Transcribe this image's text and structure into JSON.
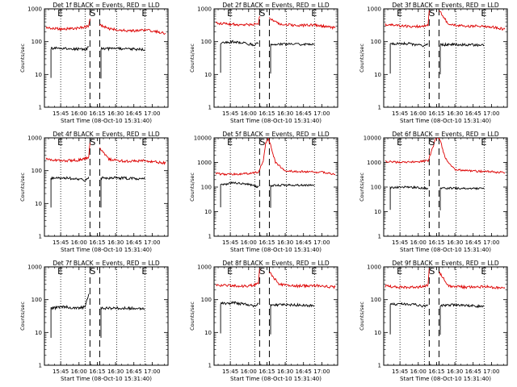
{
  "figure": {
    "time_ticks": [
      "15:45",
      "16:00",
      "16:15",
      "16:30",
      "16:45",
      "17:00"
    ],
    "y_ticks": [
      "1",
      "10",
      "100",
      "1000"
    ],
    "ylabel": "Counts/sec",
    "xlabel": "Start Time (08-Oct-10 15:31:40)",
    "markers": {
      "E": "E",
      "S": "S"
    },
    "colors": {
      "events": "#000000",
      "lld": "#dd0000",
      "axes": "#000000"
    }
  },
  "chart_data": [
    {
      "type": "line",
      "title": "Det 1f BLACK = Events, RED = LLD",
      "xlabel": "Start Time (08-Oct-10 15:31:40)",
      "ylabel": "Counts/sec",
      "ylim": [
        1,
        1000
      ],
      "yscale": "log",
      "x_range": [
        "15:31:40",
        "17:13"
      ],
      "event_lines": {
        "E_dotted": [
          "15:45",
          "16:05",
          "16:31",
          "16:54"
        ],
        "S_dashed": [
          "16:09",
          "16:17"
        ]
      },
      "series": [
        {
          "name": "Events",
          "color": "black",
          "segments": [
            {
              "x": [
                "15:37",
                "15:48",
                "16:00",
                "16:05",
                "16:08"
              ],
              "y": [
                63,
                62,
                60,
                55,
                70
              ]
            },
            {
              "x": [
                "16:18",
                "16:30",
                "16:45",
                "16:54"
              ],
              "y": [
                60,
                61,
                59,
                58
              ]
            }
          ]
        },
        {
          "name": "LLD",
          "color": "red",
          "segments": [
            {
              "x": [
                "15:33",
                "15:45",
                "16:00",
                "16:08",
                "16:09"
              ],
              "y": [
                270,
                240,
                260,
                300,
                500
              ]
            },
            {
              "x": [
                "16:17",
                "16:25",
                "16:40",
                "16:55",
                "17:11"
              ],
              "y": [
                330,
                250,
                210,
                230,
                180
              ]
            }
          ]
        }
      ]
    },
    {
      "type": "line",
      "title": "Det 2f BLACK = Events, RED = LLD",
      "xlabel": "Start Time (08-Oct-10 15:31:40)",
      "ylabel": "Counts/sec",
      "ylim": [
        1,
        1000
      ],
      "yscale": "log",
      "x_range": [
        "15:31:40",
        "17:13"
      ],
      "event_lines": {
        "E_dotted": [
          "15:45",
          "16:05",
          "16:31",
          "16:54"
        ],
        "S_dashed": [
          "16:09",
          "16:17"
        ]
      },
      "series": [
        {
          "name": "Events",
          "color": "black",
          "segments": [
            {
              "x": [
                "15:37",
                "15:48",
                "16:00",
                "16:05",
                "16:08"
              ],
              "y": [
                90,
                100,
                85,
                80,
                90
              ]
            },
            {
              "x": [
                "16:18",
                "16:30",
                "16:45",
                "16:54"
              ],
              "y": [
                85,
                85,
                82,
                80
              ]
            }
          ]
        },
        {
          "name": "LLD",
          "color": "red",
          "segments": [
            {
              "x": [
                "15:33",
                "15:45",
                "16:00",
                "16:08",
                "16:09"
              ],
              "y": [
                370,
                340,
                330,
                360,
                600
              ]
            },
            {
              "x": [
                "16:17",
                "16:25",
                "16:40",
                "16:55",
                "17:11"
              ],
              "y": [
                500,
                350,
                310,
                320,
                260
              ]
            }
          ]
        }
      ]
    },
    {
      "type": "line",
      "title": "Det 3f BLACK = Events, RED = LLD",
      "xlabel": "Start Time (08-Oct-10 15:31:40)",
      "ylabel": "Counts/sec",
      "ylim": [
        1,
        1000
      ],
      "yscale": "log",
      "x_range": [
        "15:31:40",
        "17:13"
      ],
      "event_lines": {
        "E_dotted": [
          "15:45",
          "16:05",
          "16:31",
          "16:54"
        ],
        "S_dashed": [
          "16:09",
          "16:17"
        ]
      },
      "series": [
        {
          "name": "Events",
          "color": "black",
          "segments": [
            {
              "x": [
                "15:37",
                "15:48",
                "16:00",
                "16:05",
                "16:08"
              ],
              "y": [
                85,
                90,
                80,
                75,
                85
              ]
            },
            {
              "x": [
                "16:18",
                "16:30",
                "16:45",
                "16:54"
              ],
              "y": [
                80,
                82,
                80,
                78
              ]
            }
          ]
        },
        {
          "name": "LLD",
          "color": "red",
          "segments": [
            {
              "x": [
                "15:33",
                "15:45",
                "16:00",
                "16:08",
                "16:09"
              ],
              "y": [
                330,
                300,
                290,
                320,
                900
              ]
            },
            {
              "x": [
                "16:17",
                "16:25",
                "16:40",
                "16:55",
                "17:11"
              ],
              "y": [
                900,
                330,
                290,
                300,
                240
              ]
            }
          ]
        }
      ]
    },
    {
      "type": "line",
      "title": "Det 4f BLACK = Events, RED = LLD",
      "xlabel": "Start Time (08-Oct-10 15:31:40)",
      "ylabel": "Counts/sec",
      "ylim": [
        1,
        1000
      ],
      "yscale": "log",
      "x_range": [
        "15:31:40",
        "17:13"
      ],
      "event_lines": {
        "E_dotted": [
          "15:45",
          "16:05",
          "16:31",
          "16:54"
        ],
        "S_dashed": [
          "16:09",
          "16:17"
        ]
      },
      "series": [
        {
          "name": "Events",
          "color": "black",
          "segments": [
            {
              "x": [
                "15:37",
                "15:48",
                "16:00",
                "16:05",
                "16:08"
              ],
              "y": [
                60,
                60,
                55,
                52,
                65
              ]
            },
            {
              "x": [
                "16:18",
                "16:30",
                "16:45",
                "16:54"
              ],
              "y": [
                60,
                60,
                58,
                56
              ]
            }
          ]
        },
        {
          "name": "LLD",
          "color": "red",
          "segments": [
            {
              "x": [
                "15:33",
                "15:45",
                "16:00",
                "16:08",
                "16:09"
              ],
              "y": [
                220,
                200,
                210,
                250,
                700
              ]
            },
            {
              "x": [
                "16:17",
                "16:25",
                "16:40",
                "16:55",
                "17:11"
              ],
              "y": [
                500,
                220,
                190,
                200,
                170
              ]
            }
          ]
        }
      ]
    },
    {
      "type": "line",
      "title": "Det 5f BLACK = Events, RED = LLD",
      "xlabel": "Start Time (08-Oct-10 15:31:40)",
      "ylabel": "Counts/sec",
      "ylim": [
        1,
        10000
      ],
      "yscale": "log",
      "x_range": [
        "15:31:40",
        "17:13"
      ],
      "event_lines": {
        "E_dotted": [
          "15:45",
          "16:05",
          "16:31",
          "16:54"
        ],
        "S_dashed": [
          "16:09",
          "16:17"
        ]
      },
      "series": [
        {
          "name": "Events",
          "color": "black",
          "segments": [
            {
              "x": [
                "15:37",
                "15:48",
                "16:00",
                "16:05",
                "16:08"
              ],
              "y": [
                120,
                150,
                130,
                110,
                100
              ]
            },
            {
              "x": [
                "16:18",
                "16:30",
                "16:45",
                "16:54"
              ],
              "y": [
                115,
                120,
                118,
                115
              ]
            }
          ]
        },
        {
          "name": "LLD",
          "color": "red",
          "segments": [
            {
              "x": [
                "15:33",
                "15:45",
                "16:00",
                "16:08",
                "16:12",
                "16:14",
                "16:16",
                "16:18",
                "16:22",
                "16:30",
                "16:45",
                "17:00",
                "17:11"
              ],
              "y": [
                350,
                330,
                360,
                400,
                1200,
                6000,
                9000,
                5000,
                1000,
                450,
                420,
                400,
                330
              ]
            }
          ]
        }
      ]
    },
    {
      "type": "line",
      "title": "Det 6f BLACK = Events, RED = LLD",
      "xlabel": "Start Time (08-Oct-10 15:31:40)",
      "ylabel": "Counts/sec",
      "ylim": [
        1,
        10000
      ],
      "yscale": "log",
      "x_range": [
        "15:31:40",
        "17:13"
      ],
      "event_lines": {
        "E_dotted": [
          "15:45",
          "16:05",
          "16:31",
          "16:54"
        ],
        "S_dashed": [
          "16:09",
          "16:17"
        ]
      },
      "series": [
        {
          "name": "Events",
          "color": "black",
          "segments": [
            {
              "x": [
                "15:37",
                "15:48",
                "16:00",
                "16:05",
                "16:08"
              ],
              "y": [
                95,
                100,
                95,
                90,
                90
              ]
            },
            {
              "x": [
                "16:18",
                "16:30",
                "16:45",
                "16:54"
              ],
              "y": [
                90,
                90,
                88,
                85
              ]
            }
          ]
        },
        {
          "name": "LLD",
          "color": "red",
          "segments": [
            {
              "x": [
                "15:33",
                "15:45",
                "16:00",
                "16:08",
                "16:12",
                "16:14",
                "16:16",
                "16:18",
                "16:22",
                "16:30",
                "16:45",
                "17:00",
                "17:11"
              ],
              "y": [
                1100,
                1000,
                1050,
                1200,
                4000,
                9000,
                11000,
                8000,
                1500,
                500,
                450,
                420,
                380
              ]
            }
          ]
        }
      ]
    },
    {
      "type": "line",
      "title": "Det 7f BLACK = Events, RED = LLD",
      "xlabel": "Start Time (08-Oct-10 15:31:40)",
      "ylabel": "Counts/sec",
      "ylim": [
        1,
        1000
      ],
      "yscale": "log",
      "x_range": [
        "15:31:40",
        "17:13"
      ],
      "event_lines": {
        "E_dotted": [
          "15:45",
          "16:05",
          "16:31",
          "16:54"
        ],
        "S_dashed": [
          "16:09",
          "16:17"
        ]
      },
      "series": [
        {
          "name": "Events",
          "color": "black",
          "segments": [
            {
              "x": [
                "15:37",
                "15:48",
                "16:00",
                "16:05",
                "16:08"
              ],
              "y": [
                55,
                60,
                55,
                60,
                150
              ]
            },
            {
              "x": [
                "16:18",
                "16:30",
                "16:45",
                "16:54"
              ],
              "y": [
                55,
                55,
                55,
                52
              ]
            }
          ]
        }
      ]
    },
    {
      "type": "line",
      "title": "Det 8f BLACK = Events, RED = LLD",
      "xlabel": "Start Time (08-Oct-10 15:31:40)",
      "ylabel": "Counts/sec",
      "ylim": [
        1,
        1000
      ],
      "yscale": "log",
      "x_range": [
        "15:31:40",
        "17:13"
      ],
      "event_lines": {
        "E_dotted": [
          "15:45",
          "16:05",
          "16:31",
          "16:54"
        ],
        "S_dashed": [
          "16:09",
          "16:17"
        ]
      },
      "series": [
        {
          "name": "Events",
          "color": "black",
          "segments": [
            {
              "x": [
                "15:37",
                "15:48",
                "16:00",
                "16:05",
                "16:08"
              ],
              "y": [
                75,
                80,
                70,
                65,
                75
              ]
            },
            {
              "x": [
                "16:18",
                "16:30",
                "16:45",
                "16:54"
              ],
              "y": [
                70,
                70,
                68,
                65
              ]
            }
          ]
        },
        {
          "name": "LLD",
          "color": "red",
          "segments": [
            {
              "x": [
                "15:33",
                "15:45",
                "16:00",
                "16:08",
                "16:09"
              ],
              "y": [
                280,
                270,
                260,
                300,
                900
              ]
            },
            {
              "x": [
                "16:17",
                "16:25",
                "16:40",
                "16:55",
                "17:11"
              ],
              "y": [
                700,
                290,
                260,
                270,
                240
              ]
            }
          ]
        }
      ]
    },
    {
      "type": "line",
      "title": "Det 9f BLACK = Events, RED = LLD",
      "xlabel": "Start Time (08-Oct-10 15:31:40)",
      "ylabel": "Counts/sec",
      "ylim": [
        1,
        1000
      ],
      "yscale": "log",
      "x_range": [
        "15:31:40",
        "17:13"
      ],
      "event_lines": {
        "E_dotted": [
          "15:45",
          "16:05",
          "16:31",
          "16:54"
        ],
        "S_dashed": [
          "16:09",
          "16:17"
        ]
      },
      "series": [
        {
          "name": "Events",
          "color": "black",
          "segments": [
            {
              "x": [
                "15:37",
                "15:48",
                "16:00",
                "16:05",
                "16:08"
              ],
              "y": [
                70,
                75,
                68,
                62,
                70
              ]
            },
            {
              "x": [
                "16:18",
                "16:30",
                "16:45",
                "16:54"
              ],
              "y": [
                68,
                68,
                65,
                62
              ]
            }
          ]
        },
        {
          "name": "LLD",
          "color": "red",
          "segments": [
            {
              "x": [
                "15:33",
                "15:45",
                "16:00",
                "16:08",
                "16:09"
              ],
              "y": [
                260,
                240,
                240,
                280,
                900
              ]
            },
            {
              "x": [
                "16:17",
                "16:25",
                "16:40",
                "16:55",
                "17:11"
              ],
              "y": [
                700,
                260,
                240,
                250,
                220
              ]
            }
          ]
        }
      ]
    }
  ]
}
